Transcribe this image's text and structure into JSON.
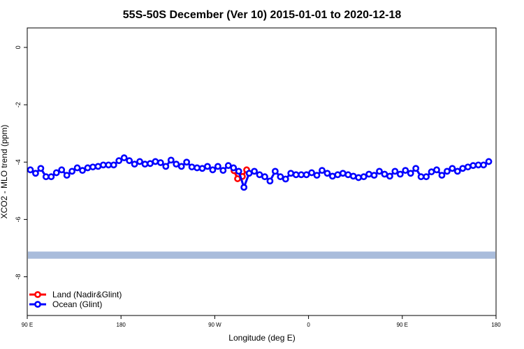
{
  "chart_data": {
    "type": "line",
    "title": "55S-50S December (Ver 10)   2015-01-01 to 2020-12-18",
    "x_label": "Longitude (deg E)",
    "y_label": "XCO2 - MLO trend (ppm)",
    "xlim": [
      90,
      540
    ],
    "ylim": [
      -9.35,
      0.68
    ],
    "xticks": [
      {
        "value": 90,
        "label": "90 E"
      },
      {
        "value": 180,
        "label": "180"
      },
      {
        "value": 270,
        "label": "90 W"
      },
      {
        "value": 360,
        "label": "0"
      },
      {
        "value": 450,
        "label": "90 E"
      },
      {
        "value": 540,
        "label": "180"
      }
    ],
    "yticks": [
      0,
      -2,
      -4,
      -6,
      -8
    ],
    "legend": "bottom-left",
    "band": {
      "color": "#a9bcdb",
      "range": [
        -7.37,
        -7.12
      ]
    },
    "series": [
      {
        "name": "Land (Nadir&Glint)",
        "color": "#ff0000",
        "x": [
          288.5,
          291.9,
          296.5,
          300.6
        ],
        "values": [
          -4.3,
          -4.58,
          -4.5,
          -4.27
        ]
      },
      {
        "name": "Ocean (Glint)",
        "color": "#0000ff",
        "x": [
          93,
          98,
          103,
          108,
          113,
          118,
          123,
          128,
          133,
          138,
          143,
          148,
          153,
          158,
          163,
          168,
          173,
          178,
          183,
          188,
          193,
          198,
          203,
          208,
          213,
          218,
          223,
          228,
          233,
          238,
          243,
          248,
          253,
          258,
          263,
          268,
          273,
          278,
          283,
          288,
          293,
          298,
          303,
          308,
          313,
          318,
          323,
          328,
          333,
          338,
          343,
          348,
          353,
          358,
          363,
          368,
          373,
          378,
          383,
          388,
          393,
          398,
          403,
          408,
          413,
          418,
          423,
          428,
          433,
          438,
          443,
          448,
          453,
          458,
          463,
          468,
          473,
          478,
          483,
          488,
          493,
          498,
          503,
          508,
          513,
          518,
          523,
          528,
          533
        ],
        "values": [
          -4.27,
          -4.39,
          -4.22,
          -4.51,
          -4.51,
          -4.37,
          -4.27,
          -4.46,
          -4.32,
          -4.2,
          -4.29,
          -4.2,
          -4.17,
          -4.15,
          -4.1,
          -4.1,
          -4.1,
          -3.95,
          -3.85,
          -3.95,
          -4.07,
          -3.98,
          -4.07,
          -4.05,
          -3.98,
          -4.02,
          -4.15,
          -3.93,
          -4.07,
          -4.15,
          -4.0,
          -4.17,
          -4.2,
          -4.22,
          -4.15,
          -4.27,
          -4.15,
          -4.29,
          -4.12,
          -4.2,
          -4.32,
          -4.88,
          -4.39,
          -4.32,
          -4.44,
          -4.51,
          -4.66,
          -4.32,
          -4.51,
          -4.59,
          -4.39,
          -4.44,
          -4.44,
          -4.44,
          -4.37,
          -4.46,
          -4.29,
          -4.39,
          -4.49,
          -4.44,
          -4.39,
          -4.44,
          -4.49,
          -4.54,
          -4.51,
          -4.42,
          -4.46,
          -4.32,
          -4.42,
          -4.49,
          -4.32,
          -4.42,
          -4.29,
          -4.39,
          -4.22,
          -4.51,
          -4.51,
          -4.34,
          -4.27,
          -4.46,
          -4.32,
          -4.22,
          -4.32,
          -4.22,
          -4.17,
          -4.12,
          -4.1,
          -4.1,
          -3.98
        ]
      }
    ]
  }
}
